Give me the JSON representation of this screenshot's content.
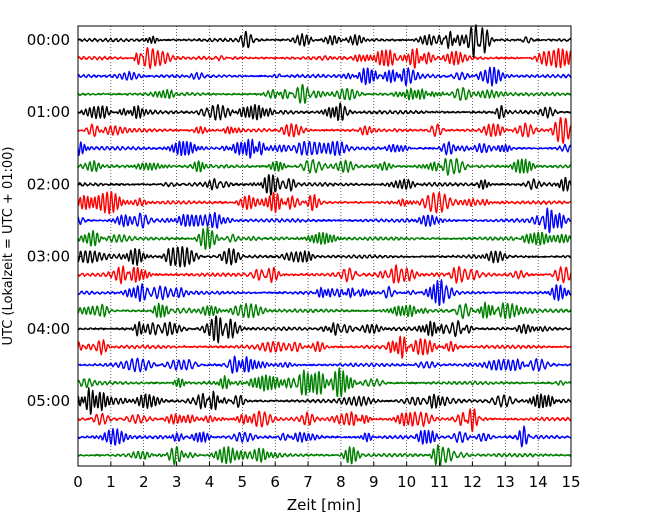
{
  "chart_data": {
    "type": "line",
    "xlabel": "Zeit  [min]",
    "ylabel": "UTC (Lokalzeit = UTC + 01:00)",
    "xlim": [
      0,
      15
    ],
    "x_ticks": [
      0,
      1,
      2,
      3,
      4,
      5,
      6,
      7,
      8,
      9,
      10,
      11,
      12,
      13,
      14,
      15
    ],
    "grid": "vertical dotted",
    "trace_interval_min": 15,
    "trace_count": 24,
    "trace_colors": [
      "#000000",
      "#ff0000",
      "#0000ff",
      "#008000"
    ],
    "y_ticks": [
      {
        "label": "00:00",
        "trace_index": 0
      },
      {
        "label": "01:00",
        "trace_index": 4
      },
      {
        "label": "02:00",
        "trace_index": 8
      },
      {
        "label": "03:00",
        "trace_index": 12
      },
      {
        "label": "04:00",
        "trace_index": 16
      },
      {
        "label": "05:00",
        "trace_index": 20
      }
    ]
  }
}
